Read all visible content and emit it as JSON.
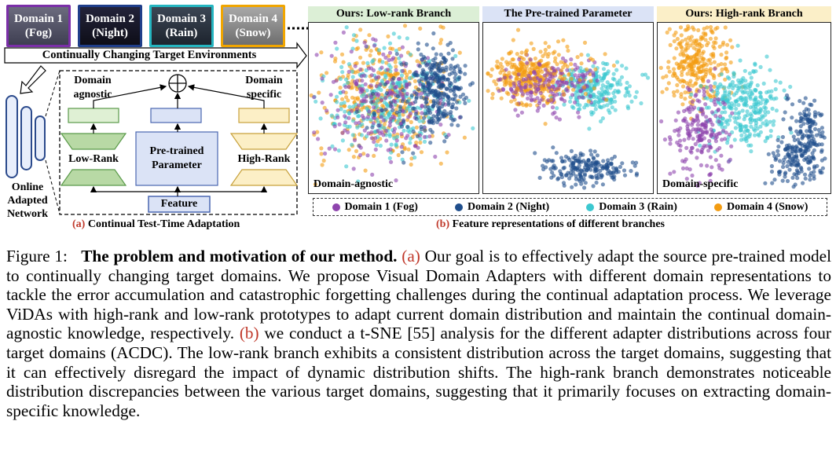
{
  "domains": [
    {
      "line1": "Domain 1",
      "line2": "(Fog)",
      "border": "#7b2fa8",
      "bg": "#5a5a6e"
    },
    {
      "line1": "Domain 2",
      "line2": "(Night)",
      "border": "#1f3e8a",
      "bg": "#1b1b2a"
    },
    {
      "line1": "Domain 3",
      "line2": "(Rain)",
      "border": "#25b5c0",
      "bg": "#2c3440"
    },
    {
      "line1": "Domain 4",
      "line2": "(Snow)",
      "border": "#f0a500",
      "bg": "#8a8a8a"
    }
  ],
  "arrow_label": "Continually Changing Target Environments",
  "network_label": [
    "Online",
    "Adapted",
    "Network"
  ],
  "diagram": {
    "domain_agnostic": [
      "Domain",
      "agnostic"
    ],
    "domain_specific": [
      "Domain",
      "specific"
    ],
    "low_rank": "Low-Rank",
    "pretrained": [
      "Pre-trained",
      "Parameter"
    ],
    "high_rank": "High-Rank",
    "feature": "Feature",
    "sub_prefix": "(a)",
    "sub_text": "Continual Test-Time Adaptation"
  },
  "panels": [
    {
      "title": "Ours:  Low-rank Branch",
      "title_bg": "#dcefd6",
      "label": "Domain-agnostic"
    },
    {
      "title": "The Pre-trained Parameter",
      "title_bg": "#dbe3f6",
      "label": ""
    },
    {
      "title": "Ours:  High-rank Branch",
      "title_bg": "#fbefc8",
      "label": "Domain-specific"
    }
  ],
  "legend": [
    {
      "label": "Domain 1 (Fog)",
      "color": "#8e44ad"
    },
    {
      "label": "Domain 2 (Night)",
      "color": "#1f4e8c"
    },
    {
      "label": "Domain 3 (Rain)",
      "color": "#3cc8d0"
    },
    {
      "label": "Domain 4 (Snow)",
      "color": "#f39c12"
    }
  ],
  "sub_b": {
    "prefix": "(b)",
    "text": "Feature representations of different branches"
  },
  "caption": {
    "fig": "Figure 1:",
    "bold": "The problem and motivation of our method.",
    "a": "(a)",
    "t1": "Our goal is to effectively adapt the source pre-trained model to continually changing target domains. We propose Visual Domain Adapters with different domain representations to tackle the error accumulation and catastrophic forgetting challenges during the continual adaptation process. We leverage ViDAs with high-rank and low-rank prototypes to adapt current domain distribution and maintain the continual domain-agnostic knowledge, respectively.",
    "b": "(b)",
    "t2": "we conduct a t-SNE [55] analysis for the different adapter distributions across four target domains (ACDC). The low-rank branch exhibits a consistent distribution across the target domains, suggesting that it can effectively disregard the impact of dynamic distribution shifts. The high-rank branch demonstrates noticeable distribution discrepancies between the various target domains, suggesting that it primarily focuses on extracting domain-specific knowledge."
  }
}
